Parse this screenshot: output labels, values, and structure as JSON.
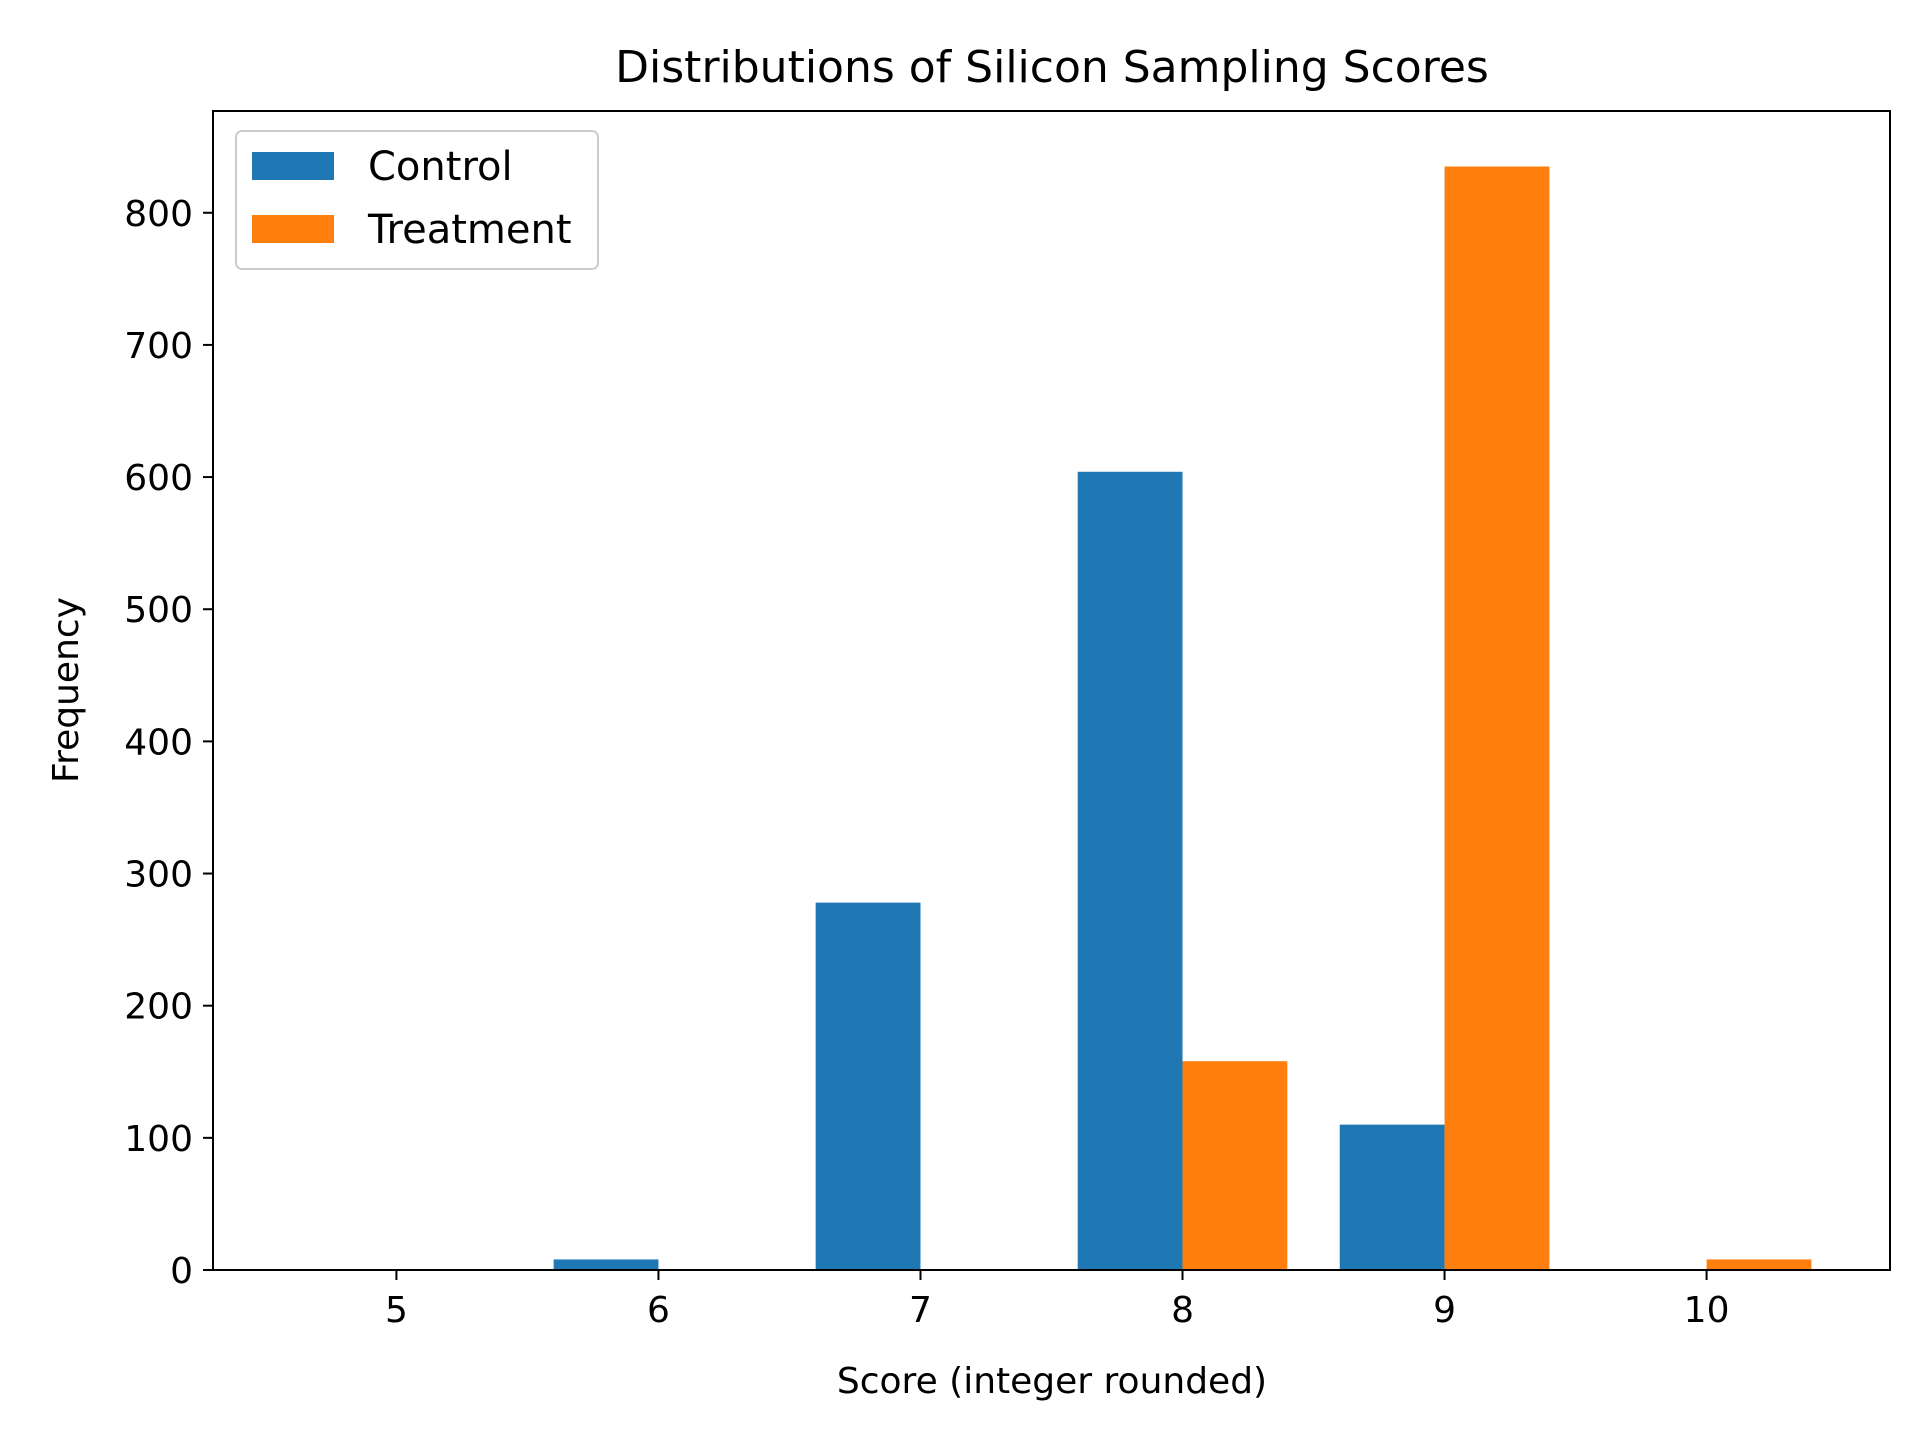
{
  "chart_data": {
    "type": "bar",
    "title": "Distributions of Silicon Sampling Scores",
    "xlabel": "Score (integer rounded)",
    "ylabel": "Frequency",
    "categories": [
      5,
      6,
      7,
      8,
      9,
      10
    ],
    "x_ticks": [
      "5",
      "6",
      "7",
      "8",
      "9",
      "10"
    ],
    "y_ticks": [
      "0",
      "100",
      "200",
      "300",
      "400",
      "500",
      "600",
      "700",
      "800"
    ],
    "xlim": [
      4.3,
      10.7
    ],
    "ylim": [
      0,
      877
    ],
    "grid": false,
    "legend_position": "top-left",
    "series": [
      {
        "name": "Control",
        "color": "#1f77b4",
        "values": [
          0,
          8,
          278,
          604,
          110,
          0
        ]
      },
      {
        "name": "Treatment",
        "color": "#ff7f0e",
        "values": [
          0,
          0,
          0,
          158,
          835,
          8
        ]
      }
    ]
  }
}
